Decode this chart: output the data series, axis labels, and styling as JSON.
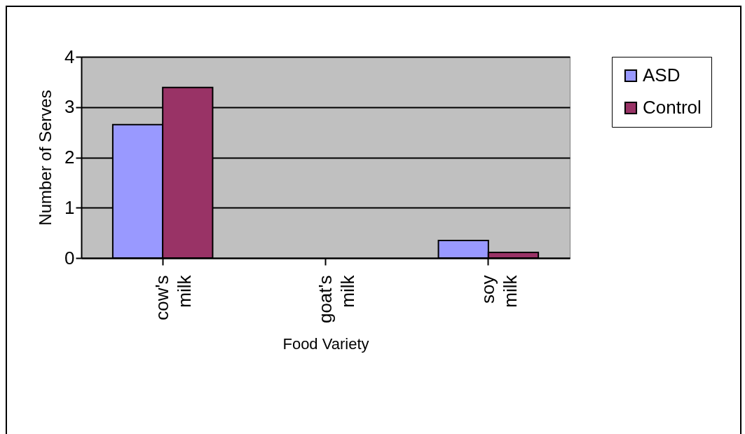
{
  "chart_data": {
    "type": "bar",
    "xlabel": "Food Variety",
    "ylabel": "Number of Serves",
    "categories": [
      "cow's milk",
      "goat's milk",
      "soy milk"
    ],
    "series": [
      {
        "name": "ASD",
        "color": "#9999ff",
        "values": [
          2.65,
          0,
          0.35
        ]
      },
      {
        "name": "Control",
        "color": "#993366",
        "values": [
          3.39,
          0,
          0.11
        ]
      }
    ],
    "ylim": [
      0,
      4
    ],
    "yticks": [
      0,
      1,
      2,
      3,
      4
    ],
    "grid": "y",
    "legend": "right"
  }
}
